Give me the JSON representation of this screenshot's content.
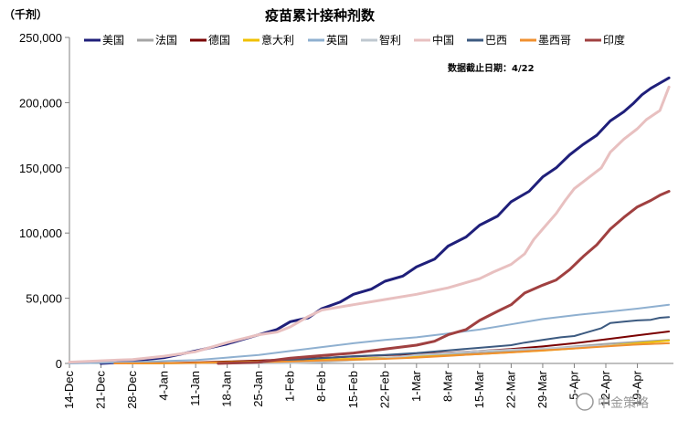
{
  "chart_data": {
    "type": "line",
    "title": "疫苗累计接种剂数",
    "unit_label": "（千剂）",
    "annotation": "数据截止日期：4/22",
    "watermark": "中金策略",
    "xlabel": "",
    "ylabel": "",
    "ylim": [
      0,
      250000
    ],
    "yticks": [
      0,
      50000,
      100000,
      150000,
      200000,
      250000
    ],
    "ytick_labels": [
      "0",
      "50,000",
      "100,000",
      "150,000",
      "200,000",
      "250,000"
    ],
    "x_range_days": [
      0,
      130
    ],
    "xticks": [
      {
        "day": 0,
        "label": "14-Dec"
      },
      {
        "day": 7,
        "label": "21-Dec"
      },
      {
        "day": 14,
        "label": "28-Dec"
      },
      {
        "day": 21,
        "label": "4-Jan"
      },
      {
        "day": 28,
        "label": "11-Jan"
      },
      {
        "day": 35,
        "label": "18-Jan"
      },
      {
        "day": 42,
        "label": "25-Jan"
      },
      {
        "day": 49,
        "label": "1-Feb"
      },
      {
        "day": 56,
        "label": "8-Feb"
      },
      {
        "day": 63,
        "label": "15-Feb"
      },
      {
        "day": 70,
        "label": "22-Feb"
      },
      {
        "day": 77,
        "label": "1-Mar"
      },
      {
        "day": 84,
        "label": "8-Mar"
      },
      {
        "day": 91,
        "label": "15-Mar"
      },
      {
        "day": 98,
        "label": "22-Mar"
      },
      {
        "day": 105,
        "label": "29-Mar"
      },
      {
        "day": 112,
        "label": "5-Apr"
      },
      {
        "day": 119,
        "label": "12-Apr"
      },
      {
        "day": 126,
        "label": "19-Apr"
      }
    ],
    "legend_placement": "top",
    "grid": false,
    "series": [
      {
        "name": "美国",
        "color": "#1f1f7a",
        "width": 3,
        "points": [
          [
            7,
            0
          ],
          [
            10,
            500
          ],
          [
            14,
            2000
          ],
          [
            21,
            4500
          ],
          [
            28,
            9500
          ],
          [
            35,
            15000
          ],
          [
            42,
            22000
          ],
          [
            46,
            26000
          ],
          [
            49,
            32000
          ],
          [
            53,
            35000
          ],
          [
            56,
            42000
          ],
          [
            60,
            47000
          ],
          [
            63,
            53000
          ],
          [
            67,
            57000
          ],
          [
            70,
            63000
          ],
          [
            74,
            67000
          ],
          [
            77,
            74000
          ],
          [
            81,
            80000
          ],
          [
            84,
            90000
          ],
          [
            88,
            97000
          ],
          [
            91,
            106000
          ],
          [
            95,
            113000
          ],
          [
            98,
            124000
          ],
          [
            102,
            132000
          ],
          [
            105,
            143000
          ],
          [
            108,
            150000
          ],
          [
            111,
            160000
          ],
          [
            114,
            168000
          ],
          [
            117,
            175000
          ],
          [
            120,
            186000
          ],
          [
            123,
            193000
          ],
          [
            125,
            199000
          ],
          [
            127,
            206000
          ],
          [
            129,
            211000
          ],
          [
            131,
            215000
          ],
          [
            133,
            219000
          ]
        ]
      },
      {
        "name": "法国",
        "color": "#a5a5a5",
        "width": 2,
        "points": [
          [
            14,
            0
          ],
          [
            21,
            100
          ],
          [
            28,
            300
          ],
          [
            35,
            700
          ],
          [
            42,
            1500
          ],
          [
            49,
            2300
          ],
          [
            56,
            3000
          ],
          [
            63,
            3700
          ],
          [
            70,
            4500
          ],
          [
            77,
            5500
          ],
          [
            84,
            6800
          ],
          [
            91,
            8000
          ],
          [
            98,
            9500
          ],
          [
            105,
            11000
          ],
          [
            112,
            13000
          ],
          [
            119,
            15000
          ],
          [
            126,
            16500
          ],
          [
            133,
            18000
          ]
        ]
      },
      {
        "name": "德国",
        "color": "#7a0000",
        "width": 2,
        "points": [
          [
            13,
            0
          ],
          [
            21,
            300
          ],
          [
            28,
            800
          ],
          [
            35,
            1500
          ],
          [
            42,
            2200
          ],
          [
            49,
            3200
          ],
          [
            56,
            4200
          ],
          [
            63,
            5300
          ],
          [
            70,
            6300
          ],
          [
            77,
            7200
          ],
          [
            84,
            8200
          ],
          [
            91,
            9500
          ],
          [
            98,
            11000
          ],
          [
            105,
            13000
          ],
          [
            112,
            15500
          ],
          [
            119,
            18500
          ],
          [
            126,
            21500
          ],
          [
            133,
            24500
          ]
        ]
      },
      {
        "name": "意大利",
        "color": "#f0c000",
        "width": 2,
        "points": [
          [
            13,
            0
          ],
          [
            21,
            100
          ],
          [
            28,
            400
          ],
          [
            35,
            1000
          ],
          [
            42,
            1600
          ],
          [
            49,
            2200
          ],
          [
            56,
            2800
          ],
          [
            63,
            3500
          ],
          [
            70,
            4200
          ],
          [
            77,
            5000
          ],
          [
            84,
            6000
          ],
          [
            91,
            7200
          ],
          [
            98,
            8500
          ],
          [
            105,
            9800
          ],
          [
            112,
            11500
          ],
          [
            119,
            13500
          ],
          [
            126,
            15500
          ],
          [
            133,
            17500
          ]
        ]
      },
      {
        "name": "英国",
        "color": "#8fb0d0",
        "width": 2,
        "points": [
          [
            0,
            0
          ],
          [
            7,
            500
          ],
          [
            14,
            1000
          ],
          [
            21,
            1800
          ],
          [
            28,
            2500
          ],
          [
            35,
            4500
          ],
          [
            42,
            6500
          ],
          [
            49,
            9500
          ],
          [
            56,
            12500
          ],
          [
            63,
            15500
          ],
          [
            70,
            18000
          ],
          [
            77,
            20000
          ],
          [
            84,
            23000
          ],
          [
            91,
            26000
          ],
          [
            98,
            30000
          ],
          [
            105,
            34000
          ],
          [
            112,
            37000
          ],
          [
            119,
            39500
          ],
          [
            126,
            42000
          ],
          [
            133,
            45000
          ]
        ]
      },
      {
        "name": "智利",
        "color": "#bfc8d0",
        "width": 2,
        "points": [
          [
            35,
            0
          ],
          [
            49,
            300
          ],
          [
            56,
            1000
          ],
          [
            63,
            2500
          ],
          [
            70,
            4000
          ],
          [
            77,
            6500
          ],
          [
            84,
            8000
          ],
          [
            91,
            9500
          ],
          [
            98,
            10500
          ],
          [
            105,
            11500
          ],
          [
            112,
            12500
          ],
          [
            119,
            13500
          ],
          [
            126,
            14500
          ],
          [
            133,
            15500
          ]
        ]
      },
      {
        "name": "中国",
        "color": "#e8c0c0",
        "width": 3,
        "points": [
          [
            0,
            1000
          ],
          [
            7,
            2000
          ],
          [
            14,
            3000
          ],
          [
            21,
            5500
          ],
          [
            28,
            9000
          ],
          [
            35,
            16000
          ],
          [
            42,
            22000
          ],
          [
            46,
            24000
          ],
          [
            49,
            28000
          ],
          [
            53,
            36000
          ],
          [
            56,
            41000
          ],
          [
            63,
            45000
          ],
          [
            70,
            49000
          ],
          [
            77,
            53000
          ],
          [
            84,
            58000
          ],
          [
            91,
            65000
          ],
          [
            94,
            70000
          ],
          [
            98,
            76000
          ],
          [
            101,
            84000
          ],
          [
            103,
            95000
          ],
          [
            105,
            103000
          ],
          [
            108,
            115000
          ],
          [
            110,
            125000
          ],
          [
            112,
            134000
          ],
          [
            115,
            142000
          ],
          [
            118,
            150000
          ],
          [
            120,
            162000
          ],
          [
            123,
            172000
          ],
          [
            126,
            180000
          ],
          [
            128,
            187000
          ],
          [
            131,
            194000
          ],
          [
            133,
            212000
          ]
        ]
      },
      {
        "name": "巴西",
        "color": "#3c5a80",
        "width": 2,
        "points": [
          [
            35,
            0
          ],
          [
            42,
            800
          ],
          [
            49,
            2500
          ],
          [
            56,
            4000
          ],
          [
            63,
            5500
          ],
          [
            70,
            6500
          ],
          [
            77,
            8000
          ],
          [
            84,
            10000
          ],
          [
            91,
            12000
          ],
          [
            98,
            14000
          ],
          [
            101,
            16000
          ],
          [
            105,
            18000
          ],
          [
            109,
            20000
          ],
          [
            112,
            21000
          ],
          [
            115,
            24000
          ],
          [
            118,
            27000
          ],
          [
            120,
            31000
          ],
          [
            123,
            32000
          ],
          [
            126,
            33000
          ],
          [
            129,
            33500
          ],
          [
            131,
            35000
          ],
          [
            133,
            35500
          ]
        ]
      },
      {
        "name": "墨西哥",
        "color": "#f09030",
        "width": 2,
        "points": [
          [
            10,
            0
          ],
          [
            21,
            150
          ],
          [
            28,
            400
          ],
          [
            35,
            700
          ],
          [
            42,
            1000
          ],
          [
            49,
            1500
          ],
          [
            56,
            2200
          ],
          [
            63,
            2800
          ],
          [
            70,
            3500
          ],
          [
            77,
            4500
          ],
          [
            84,
            5800
          ],
          [
            91,
            7200
          ],
          [
            98,
            8500
          ],
          [
            105,
            10000
          ],
          [
            112,
            11500
          ],
          [
            119,
            13000
          ],
          [
            126,
            14500
          ],
          [
            133,
            15500
          ]
        ]
      },
      {
        "name": "印度",
        "color": "#a04040",
        "width": 3,
        "points": [
          [
            33,
            0
          ],
          [
            42,
            1000
          ],
          [
            49,
            4000
          ],
          [
            56,
            6000
          ],
          [
            63,
            8000
          ],
          [
            70,
            11000
          ],
          [
            77,
            14000
          ],
          [
            81,
            17000
          ],
          [
            84,
            22000
          ],
          [
            88,
            26000
          ],
          [
            91,
            33000
          ],
          [
            95,
            40000
          ],
          [
            98,
            45000
          ],
          [
            101,
            54000
          ],
          [
            105,
            60000
          ],
          [
            108,
            64000
          ],
          [
            111,
            72000
          ],
          [
            114,
            82000
          ],
          [
            117,
            91000
          ],
          [
            120,
            103000
          ],
          [
            123,
            112000
          ],
          [
            126,
            120000
          ],
          [
            129,
            125000
          ],
          [
            131,
            129000
          ],
          [
            133,
            132000
          ]
        ]
      }
    ]
  }
}
